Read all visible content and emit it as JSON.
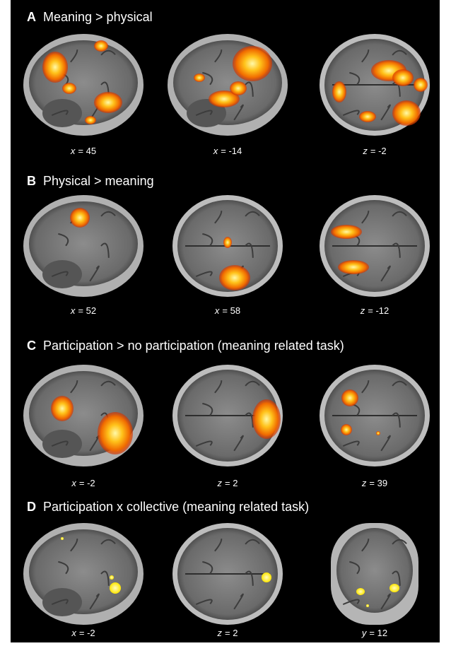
{
  "panels": [
    {
      "letter": "A",
      "title": "Meaning > physical",
      "images": [
        {
          "var": "x",
          "eq": "= 45"
        },
        {
          "var": "x",
          "eq": "= -14"
        },
        {
          "var": "z",
          "eq": "= -2"
        }
      ]
    },
    {
      "letter": "B",
      "title": "Physical > meaning",
      "images": [
        {
          "var": "x",
          "eq": "= 52"
        },
        {
          "var": "x",
          "eq": "= 58"
        },
        {
          "var": "z",
          "eq": "= -12"
        }
      ]
    },
    {
      "letter": "C",
      "title": "Participation > no participation (meaning related task)",
      "images": [
        {
          "var": "x",
          "eq": "= -2"
        },
        {
          "var": "z",
          "eq": "= 2"
        },
        {
          "var": "z",
          "eq": "= 39"
        }
      ]
    },
    {
      "letter": "D",
      "title": "Participation x collective (meaning related task)",
      "images": [
        {
          "var": "x",
          "eq": "= -2"
        },
        {
          "var": "z",
          "eq": "= 2"
        },
        {
          "var": "y",
          "eq": "= 12"
        }
      ]
    }
  ]
}
